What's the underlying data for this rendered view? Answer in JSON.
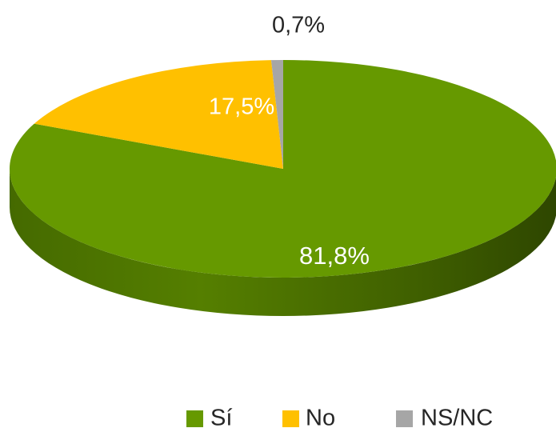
{
  "chart_data": {
    "type": "pie",
    "style": "3d",
    "title": "",
    "labels": [
      "Sí",
      "No",
      "NS/NC"
    ],
    "values": [
      81.8,
      17.5,
      0.7
    ],
    "data_labels": [
      "81,8%",
      "17,5%",
      "0,7%"
    ],
    "colors": [
      "#669900",
      "#FFC000",
      "#A6A6A6"
    ],
    "legend": {
      "position": "bottom-right",
      "entries": [
        "Sí",
        "No",
        "NS/NC"
      ]
    }
  }
}
